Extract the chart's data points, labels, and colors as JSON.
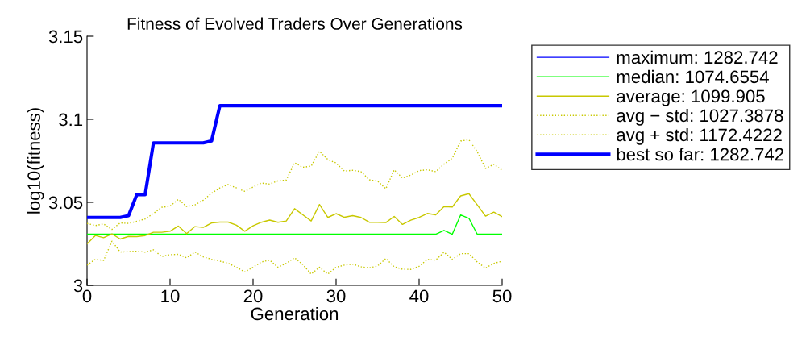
{
  "chart_data": {
    "type": "line",
    "title": "Fitness of Evolved Traders Over Generations",
    "xlabel": "Generation",
    "ylabel": "log10(fitness)",
    "x": [
      0,
      1,
      2,
      3,
      4,
      5,
      6,
      7,
      8,
      9,
      10,
      11,
      12,
      13,
      14,
      15,
      16,
      17,
      18,
      19,
      20,
      21,
      22,
      23,
      24,
      25,
      26,
      27,
      28,
      29,
      30,
      31,
      32,
      33,
      34,
      35,
      36,
      37,
      38,
      39,
      40,
      41,
      42,
      43,
      44,
      45,
      46,
      47,
      48,
      49,
      50
    ],
    "xlim": [
      0,
      50
    ],
    "xticks": [
      0,
      10,
      20,
      30,
      40,
      50
    ],
    "ylim": [
      3,
      3.15
    ],
    "yticks": [
      3,
      3.05,
      3.1,
      3.15
    ],
    "grid": false,
    "legend": "top right",
    "marker": "none",
    "series": [
      {
        "name": "maximum: 1282.742",
        "color": "#0000ff",
        "line_style": "solid",
        "values": [
          null,
          null,
          null,
          null,
          null,
          null,
          null,
          null,
          null,
          null,
          null,
          null,
          null,
          null,
          null,
          null,
          null,
          null,
          null,
          null,
          null,
          null,
          null,
          null,
          null,
          null,
          null,
          null,
          null,
          null,
          null,
          null,
          null,
          null,
          null,
          null,
          null,
          null,
          null,
          null,
          null,
          null,
          null,
          null,
          null,
          null,
          null,
          null,
          null,
          null,
          null
        ]
      },
      {
        "name": "median: 1074.6554",
        "color": "#00ff00",
        "line_style": "solid",
        "values": [
          3.0308,
          3.0308,
          3.0308,
          3.0308,
          3.0308,
          3.0308,
          3.0308,
          3.0308,
          3.0308,
          3.0308,
          3.0308,
          3.0308,
          3.0308,
          3.0308,
          3.0308,
          3.0308,
          3.0308,
          3.0308,
          3.0308,
          3.0308,
          3.0308,
          3.0308,
          3.0308,
          3.0308,
          3.0308,
          3.0308,
          3.0308,
          3.0308,
          3.0308,
          3.0308,
          3.0308,
          3.0308,
          3.0308,
          3.0308,
          3.0308,
          3.0308,
          3.0308,
          3.0308,
          3.0308,
          3.0308,
          3.0308,
          3.0308,
          3.0308,
          3.0331,
          3.0308,
          3.0424,
          3.0404,
          3.0308,
          3.0308,
          3.0308,
          3.0308
        ]
      },
      {
        "name": "average: 1099.905",
        "color": "#c8c800",
        "line_style": "solid",
        "values": [
          3.025,
          3.03,
          3.0287,
          3.031,
          3.0279,
          3.0295,
          3.0294,
          3.03,
          3.032,
          3.032,
          3.0326,
          3.0357,
          3.0312,
          3.0354,
          3.0349,
          3.0376,
          3.0381,
          3.0381,
          3.0362,
          3.0326,
          3.0359,
          3.038,
          3.0393,
          3.038,
          3.0388,
          3.0462,
          3.0425,
          3.0388,
          3.0487,
          3.0409,
          3.0432,
          3.041,
          3.042,
          3.0409,
          3.038,
          3.038,
          3.0378,
          3.0415,
          3.0367,
          3.0393,
          3.0409,
          3.0433,
          3.0425,
          3.0474,
          3.0472,
          3.0539,
          3.0552,
          3.0485,
          3.0417,
          3.0441,
          3.0414
        ]
      },
      {
        "name": "avg − std: 1027.3878",
        "color": "#c8c800",
        "line_style": "dotted",
        "values": [
          3.0122,
          3.0157,
          3.015,
          3.0266,
          3.0201,
          3.0203,
          3.0206,
          3.02,
          3.0214,
          3.0174,
          3.0185,
          3.0187,
          3.0166,
          3.0201,
          3.0172,
          3.0157,
          3.0146,
          3.0133,
          3.0109,
          3.0081,
          3.0109,
          3.0141,
          3.0152,
          3.0109,
          3.0133,
          3.0166,
          3.0125,
          3.0068,
          3.0109,
          3.0068,
          3.0109,
          3.0122,
          3.0128,
          3.0112,
          3.0105,
          3.0117,
          3.0162,
          3.0112,
          3.0097,
          3.0096,
          3.0115,
          3.0156,
          3.0152,
          3.02,
          3.0157,
          3.0191,
          3.0191,
          3.0141,
          3.0104,
          3.0133,
          3.0145
        ]
      },
      {
        "name": "avg + std: 1172.4222",
        "color": "#c8c800",
        "line_style": "dotted",
        "values": [
          3.0373,
          3.036,
          3.037,
          3.0337,
          3.0376,
          3.0373,
          3.0386,
          3.04,
          3.0433,
          3.047,
          3.0477,
          3.0518,
          3.0475,
          3.0485,
          3.0513,
          3.0555,
          3.0587,
          3.0607,
          3.0587,
          3.0566,
          3.0592,
          3.0616,
          3.061,
          3.063,
          3.0634,
          3.0739,
          3.0711,
          3.0718,
          3.0808,
          3.0758,
          3.0737,
          3.0688,
          3.0693,
          3.0685,
          3.0636,
          3.0628,
          3.0582,
          3.0696,
          3.0646,
          3.0664,
          3.0691,
          3.0696,
          3.0685,
          3.073,
          3.0766,
          3.0869,
          3.0877,
          3.0805,
          3.0704,
          3.0729,
          3.0693
        ]
      },
      {
        "name": "best so far: 1282.742",
        "color": "#0000ff",
        "line_style": "solid",
        "values": [
          3.0409,
          3.0409,
          3.0409,
          3.0409,
          3.0409,
          3.042,
          3.0547,
          3.0547,
          3.0858,
          3.0858,
          3.0858,
          3.0858,
          3.0858,
          3.0858,
          3.0858,
          3.087,
          3.1082,
          3.1082,
          3.1082,
          3.1082,
          3.1082,
          3.1082,
          3.1082,
          3.1082,
          3.1082,
          3.1082,
          3.1082,
          3.1082,
          3.1082,
          3.1082,
          3.1082,
          3.1082,
          3.1082,
          3.1082,
          3.1082,
          3.1082,
          3.1082,
          3.1082,
          3.1082,
          3.1082,
          3.1082,
          3.1082,
          3.1082,
          3.1082,
          3.1082,
          3.1082,
          3.1082,
          3.1082,
          3.1082,
          3.1082,
          3.1082
        ]
      }
    ]
  }
}
